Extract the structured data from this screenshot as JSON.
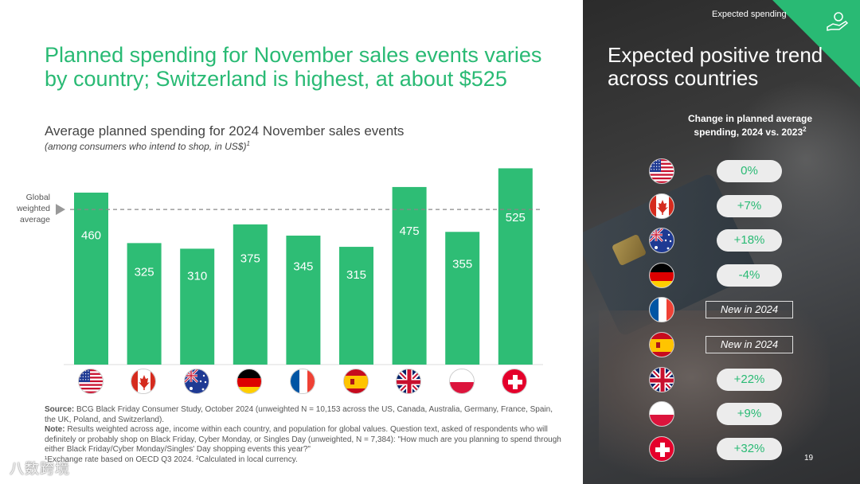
{
  "title": "Planned spending for November sales events varies by country; Switzerland is highest, at about $525",
  "chart_title": "Average planned spending for 2024 November sales events",
  "chart_subtitle": "(among consumers who intend to shop, in US$)",
  "chart_subtitle_sup": "1",
  "chart_data": {
    "type": "bar",
    "title": "Average planned spending for 2024 November sales events",
    "ylabel": "US$",
    "categories": [
      "US",
      "Canada",
      "Australia",
      "Germany",
      "France",
      "Spain",
      "UK",
      "Poland",
      "Switzerland"
    ],
    "values": [
      460,
      325,
      310,
      375,
      345,
      315,
      475,
      355,
      525
    ],
    "value_labels": [
      "460",
      "325",
      "310",
      "375",
      "345",
      "315",
      "475",
      "355",
      "525"
    ],
    "reference_line": {
      "label": "Global weighted average",
      "value": 415
    },
    "ylim": [
      0,
      560
    ],
    "bar_color": "#2ebd75"
  },
  "reference_label": "Global weighted average",
  "footnote": {
    "source_label": "Source:",
    "source_text": "BCG Black Friday Consumer Study, October 2024 (unweighted N = 10,153 across the US, Canada, Australia, Germany, France, Spain, the UK, Poland, and Switzerland).",
    "note_label": "Note:",
    "note_text": "Results weighted across age, income within each country, and population for global values. Question text, asked of respondents who will definitely or probably shop on Black Friday, Cyber Monday, or Singles Day (unweighted, N = 7,384): \"How much are you planning to spend through either Black Friday/Cyber Monday/Singles' Day shopping events this year?\"",
    "note3": "¹Exchange rate based on OECD Q3 2024. ²Calculated in local currency."
  },
  "watermark": "八数跨境",
  "panel": {
    "tag": "Expected spending",
    "title": "Expected positive trend across countries",
    "change_header": "Change in planned average spending, 2024 vs. 2023",
    "change_header_sup": "2",
    "rows": [
      {
        "country": "US",
        "value": "0%",
        "kind": "pill"
      },
      {
        "country": "Canada",
        "value": "+7%",
        "kind": "pill"
      },
      {
        "country": "Australia",
        "value": "+18%",
        "kind": "pill"
      },
      {
        "country": "Germany",
        "value": "-4%",
        "kind": "pill"
      },
      {
        "country": "France",
        "value": "New in 2024",
        "kind": "box"
      },
      {
        "country": "Spain",
        "value": "New in 2024",
        "kind": "box"
      },
      {
        "country": "UK",
        "value": "+22%",
        "kind": "pill"
      },
      {
        "country": "Poland",
        "value": "+9%",
        "kind": "pill"
      },
      {
        "country": "Switzerland",
        "value": "+32%",
        "kind": "pill"
      }
    ]
  },
  "page_number": "19",
  "colors": {
    "accent": "#29ba74",
    "bar": "#2ebd75"
  }
}
